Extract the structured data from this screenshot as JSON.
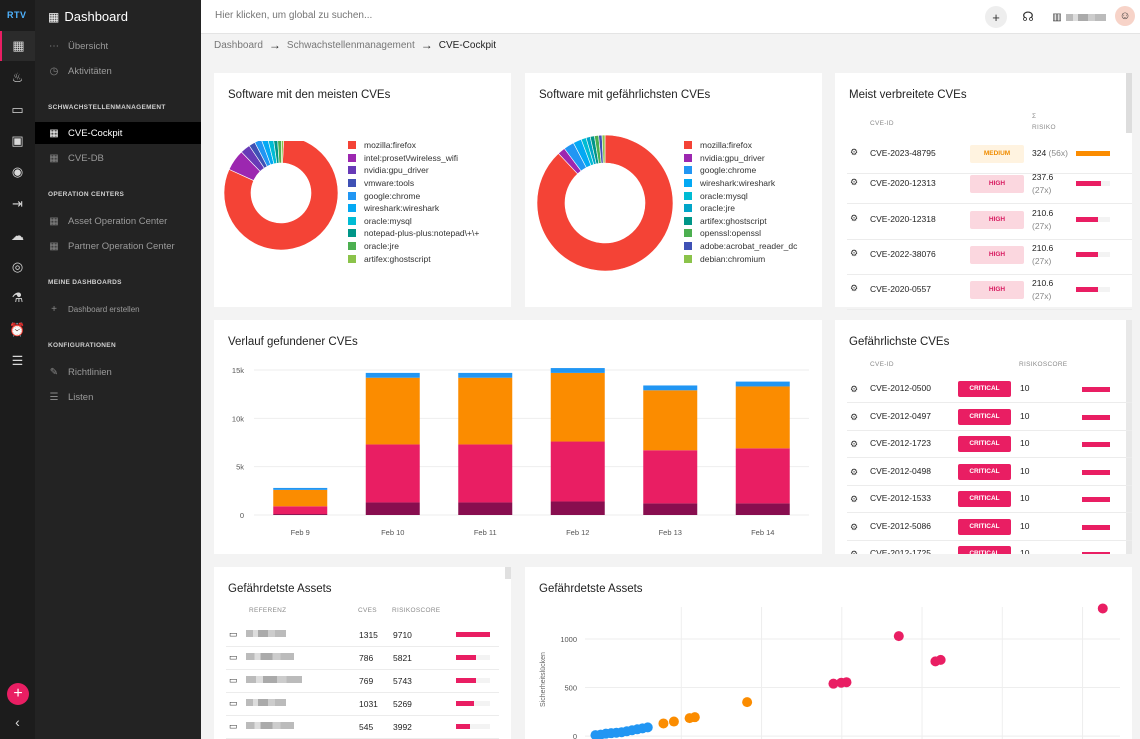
{
  "rail": {
    "logo": "RTV",
    "icons": [
      "dashboard-icon",
      "fire-icon",
      "devices-icon",
      "window-icon",
      "broadcast-icon",
      "arrow-flow-icon",
      "cloud-icon",
      "target-icon",
      "lab-icon",
      "alarm-icon",
      "sliders-icon"
    ]
  },
  "nav": {
    "title": "Dashboard",
    "items_top": [
      "Übersicht",
      "Aktivitäten"
    ],
    "section_vuln": "SCHWACHSTELLENMANAGEMENT",
    "items_vuln": [
      "CVE-Cockpit",
      "CVE-DB"
    ],
    "section_ops": "OPERATION CENTERS",
    "items_ops": [
      "Asset Operation Center",
      "Partner Operation Center"
    ],
    "section_dash": "MEINE DASHBOARDS",
    "create_dashboard": "Dashboard erstellen",
    "section_config": "KONFIGURATIONEN",
    "items_config": [
      "Richtlinien",
      "Listen"
    ]
  },
  "topbar": {
    "search_placeholder": "Hier klicken, um global zu suchen..."
  },
  "breadcrumb": [
    "Dashboard",
    "Schwachstellenmanagement",
    "CVE-Cockpit"
  ],
  "card_most_cves": {
    "title": "Software mit den meisten CVEs",
    "legend": [
      "mozilla:firefox",
      "intel:proset\\/wireless_wifi",
      "nvidia:gpu_driver",
      "vmware:tools",
      "google:chrome",
      "wireshark:wireshark",
      "oracle:mysql",
      "notepad-plus-plus:notepad\\+\\+",
      "oracle:jre",
      "artifex:ghostscript"
    ],
    "colors": [
      "#f44336",
      "#9c27b0",
      "#673ab7",
      "#3f51b5",
      "#2196f3",
      "#03a9f4",
      "#00bcd4",
      "#009688",
      "#4caf50",
      "#8bc34a"
    ]
  },
  "card_dangerous_sw": {
    "title": "Software mit gefährlichsten CVEs",
    "legend": [
      "mozilla:firefox",
      "nvidia:gpu_driver",
      "google:chrome",
      "wireshark:wireshark",
      "oracle:mysql",
      "oracle:jre",
      "artifex:ghostscript",
      "openssl:openssl",
      "adobe:acrobat_reader_dc",
      "debian:chromium"
    ],
    "colors": [
      "#f44336",
      "#9c27b0",
      "#2196f3",
      "#03a9f4",
      "#00bcd4",
      "#00a5c8",
      "#009688",
      "#4caf50",
      "#3f51b5",
      "#8bc34a"
    ]
  },
  "card_common_cves": {
    "title": "Meist verbreitete CVEs",
    "col_id": "CVE-ID",
    "col_sigma": "Σ",
    "col_risk": "RISIKO",
    "rows": [
      {
        "id": "CVE-2023-48795",
        "level": "MEDIUM",
        "cls": "medium",
        "score": "324",
        "count": "(56x)",
        "pct": 1.0,
        "color": "#fb8c00"
      },
      {
        "id": "CVE-2020-12313",
        "level": "HIGH",
        "cls": "high",
        "score": "237.6",
        "count": "(27x)",
        "pct": 0.73,
        "color": "#e91e63"
      },
      {
        "id": "CVE-2020-12318",
        "level": "HIGH",
        "cls": "high",
        "score": "210.6",
        "count": "(27x)",
        "pct": 0.65,
        "color": "#e91e63"
      },
      {
        "id": "CVE-2022-38076",
        "level": "HIGH",
        "cls": "high",
        "score": "210.6",
        "count": "(27x)",
        "pct": 0.65,
        "color": "#e91e63"
      },
      {
        "id": "CVE-2020-0557",
        "level": "HIGH",
        "cls": "high",
        "score": "210.6",
        "count": "(27x)",
        "pct": 0.65,
        "color": "#e91e63"
      }
    ]
  },
  "card_history": {
    "title": "Verlauf gefundener CVEs",
    "chart_data": {
      "type": "bar",
      "stacked": true,
      "categories": [
        "Feb 9",
        "Feb 10",
        "Feb 11",
        "Feb 12",
        "Feb 13",
        "Feb 14"
      ],
      "ytick_labels": [
        "0",
        "5k",
        "10k",
        "15k"
      ],
      "ylim": [
        0,
        15000
      ],
      "series": [
        {
          "color": "#880e4f",
          "values": [
            100,
            1300,
            1300,
            1400,
            1200,
            1200
          ]
        },
        {
          "color": "#e91e63",
          "values": [
            800,
            6000,
            6000,
            6200,
            5500,
            5700
          ]
        },
        {
          "color": "#fb8c00",
          "values": [
            1700,
            6900,
            6900,
            7100,
            6200,
            6400
          ]
        },
        {
          "color": "#2196f3",
          "values": [
            200,
            500,
            500,
            500,
            500,
            500
          ]
        }
      ]
    }
  },
  "card_dangerous_cves": {
    "title": "Gefährlichste CVEs",
    "col_id": "CVE-ID",
    "col_score": "RISIKOSCORE",
    "rows": [
      {
        "id": "CVE-2012-0500",
        "level": "CRITICAL",
        "score": "10"
      },
      {
        "id": "CVE-2012-0497",
        "level": "CRITICAL",
        "score": "10"
      },
      {
        "id": "CVE-2012-1723",
        "level": "CRITICAL",
        "score": "10"
      },
      {
        "id": "CVE-2012-0498",
        "level": "CRITICAL",
        "score": "10"
      },
      {
        "id": "CVE-2012-1533",
        "level": "CRITICAL",
        "score": "10"
      },
      {
        "id": "CVE-2012-5086",
        "level": "CRITICAL",
        "score": "10"
      },
      {
        "id": "CVE-2012-1725",
        "level": "CRITICAL",
        "score": "10"
      }
    ]
  },
  "card_assets_table": {
    "title": "Gefährdetste Assets",
    "col_ref": "REFERENZ",
    "col_cves": "CVES",
    "col_score": "RISIKOSCORE",
    "rows": [
      {
        "cves": "1315",
        "score": "9710",
        "pct": 1.0
      },
      {
        "cves": "786",
        "score": "5821",
        "pct": 0.6
      },
      {
        "cves": "769",
        "score": "5743",
        "pct": 0.59
      },
      {
        "cves": "1031",
        "score": "5269",
        "pct": 0.54
      },
      {
        "cves": "545",
        "score": "3992",
        "pct": 0.41
      }
    ]
  },
  "card_assets_scatter": {
    "title": "Gefährdetste Assets",
    "chart_data": {
      "type": "scatter",
      "ylabel": "Sicherheitslücken",
      "ytick_labels": [
        "0",
        "500",
        "1000"
      ],
      "ylim": [
        -30,
        1330
      ],
      "points": [
        {
          "x": 0.02,
          "y": 10,
          "c": "#2196f3"
        },
        {
          "x": 0.03,
          "y": 15,
          "c": "#2196f3"
        },
        {
          "x": 0.04,
          "y": 25,
          "c": "#2196f3"
        },
        {
          "x": 0.05,
          "y": 30,
          "c": "#2196f3"
        },
        {
          "x": 0.06,
          "y": 35,
          "c": "#2196f3"
        },
        {
          "x": 0.07,
          "y": 40,
          "c": "#2196f3"
        },
        {
          "x": 0.08,
          "y": 50,
          "c": "#2196f3"
        },
        {
          "x": 0.09,
          "y": 60,
          "c": "#2196f3"
        },
        {
          "x": 0.1,
          "y": 70,
          "c": "#2196f3"
        },
        {
          "x": 0.11,
          "y": 80,
          "c": "#2196f3"
        },
        {
          "x": 0.12,
          "y": 90,
          "c": "#2196f3"
        },
        {
          "x": 0.15,
          "y": 130,
          "c": "#fb8c00"
        },
        {
          "x": 0.17,
          "y": 150,
          "c": "#fb8c00"
        },
        {
          "x": 0.2,
          "y": 185,
          "c": "#fb8c00"
        },
        {
          "x": 0.21,
          "y": 195,
          "c": "#fb8c00"
        },
        {
          "x": 0.31,
          "y": 350,
          "c": "#fb8c00"
        },
        {
          "x": 0.475,
          "y": 540,
          "c": "#e91e63"
        },
        {
          "x": 0.49,
          "y": 550,
          "c": "#e91e63"
        },
        {
          "x": 0.5,
          "y": 555,
          "c": "#e91e63"
        },
        {
          "x": 0.6,
          "y": 1030,
          "c": "#e91e63"
        },
        {
          "x": 0.67,
          "y": 770,
          "c": "#e91e63"
        },
        {
          "x": 0.68,
          "y": 785,
          "c": "#e91e63"
        },
        {
          "x": 0.99,
          "y": 1315,
          "c": "#e91e63"
        }
      ]
    }
  }
}
